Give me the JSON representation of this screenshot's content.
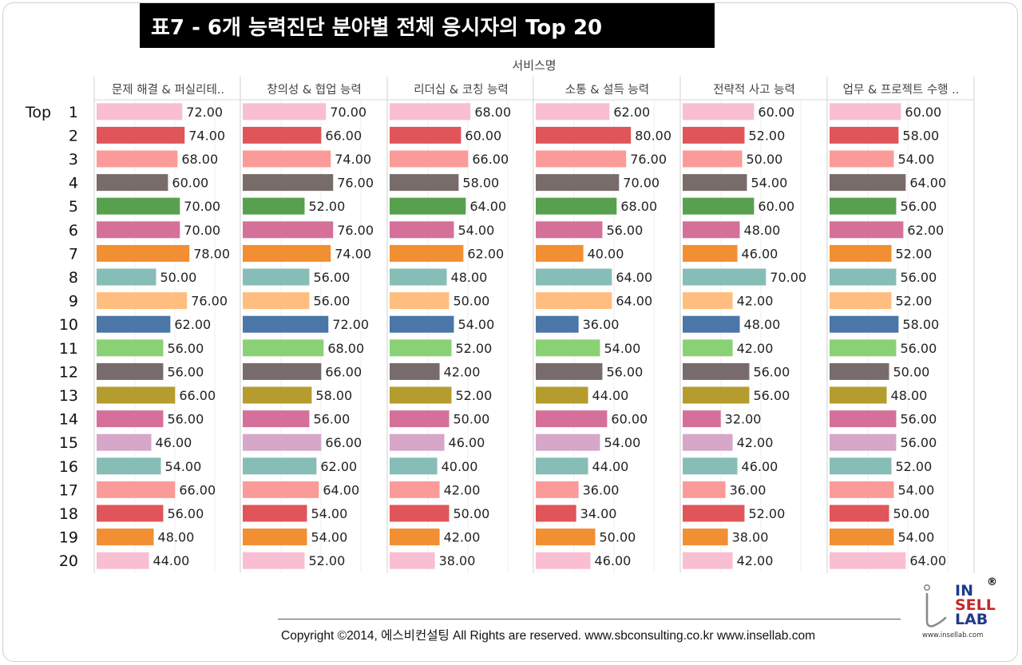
{
  "title": "표7 - 6개 능력진단 분야별 전체 응시자의 Top 20",
  "chart_data": {
    "type": "bar",
    "orientation": "horizontal",
    "title": "표7 - 6개 능력진단 분야별 전체 응시자의 Top 20",
    "column_axis_title": "서비스명",
    "row_prefix": "Top",
    "rows": [
      "1",
      "2",
      "3",
      "4",
      "5",
      "6",
      "7",
      "8",
      "9",
      "10",
      "11",
      "12",
      "13",
      "14",
      "15",
      "16",
      "17",
      "18",
      "19",
      "20"
    ],
    "value_format": "0.00",
    "xlim": [
      0,
      80
    ],
    "grid": true,
    "row_colors": [
      "#f9bed2",
      "#e05559",
      "#fb9b99",
      "#786c6a",
      "#57a04e",
      "#d5709a",
      "#f18f32",
      "#87bdb7",
      "#ffbe7f",
      "#4a76a8",
      "#8ad175",
      "#776c6b",
      "#b59c2f",
      "#d5709a",
      "#d6a7c9",
      "#87bdb7",
      "#fb9b99",
      "#e05559",
      "#f18f32",
      "#f9bed2"
    ],
    "series": [
      {
        "name": "문제 해결 & 퍼실리테..",
        "values": [
          72,
          74,
          68,
          60,
          70,
          70,
          78,
          50,
          76,
          62,
          56,
          56,
          66,
          56,
          46,
          54,
          66,
          56,
          48,
          44
        ]
      },
      {
        "name": "창의성 & 협업 능력",
        "values": [
          70,
          66,
          74,
          76,
          52,
          76,
          74,
          56,
          56,
          72,
          68,
          66,
          58,
          56,
          66,
          62,
          64,
          54,
          54,
          52
        ]
      },
      {
        "name": "리더십 & 코칭 능력",
        "values": [
          68,
          60,
          66,
          58,
          64,
          54,
          62,
          48,
          50,
          54,
          52,
          42,
          52,
          50,
          46,
          40,
          42,
          50,
          42,
          38
        ]
      },
      {
        "name": "소통 & 설득 능력",
        "values": [
          62,
          80,
          76,
          70,
          68,
          56,
          40,
          64,
          64,
          36,
          54,
          56,
          44,
          60,
          54,
          44,
          36,
          34,
          50,
          46
        ]
      },
      {
        "name": "전략적 사고 능력",
        "values": [
          60,
          52,
          50,
          54,
          60,
          48,
          46,
          70,
          42,
          48,
          42,
          56,
          56,
          32,
          42,
          46,
          36,
          52,
          38,
          42
        ]
      },
      {
        "name": "업무 & 프로젝트 수행 ..",
        "values": [
          60,
          58,
          54,
          64,
          56,
          62,
          52,
          56,
          52,
          58,
          56,
          50,
          48,
          56,
          56,
          52,
          54,
          50,
          54,
          64
        ]
      }
    ]
  },
  "footer": {
    "copyright": "Copyright ©2014, 에스비컨설팅 All Rights are reserved.     www.sbconsulting.co.kr     www.insellab.com"
  },
  "logo": {
    "text_in": "IN",
    "text_sell": "SELL",
    "text_lab": "LAB",
    "registered": "®",
    "url": "www.insellab.com"
  }
}
